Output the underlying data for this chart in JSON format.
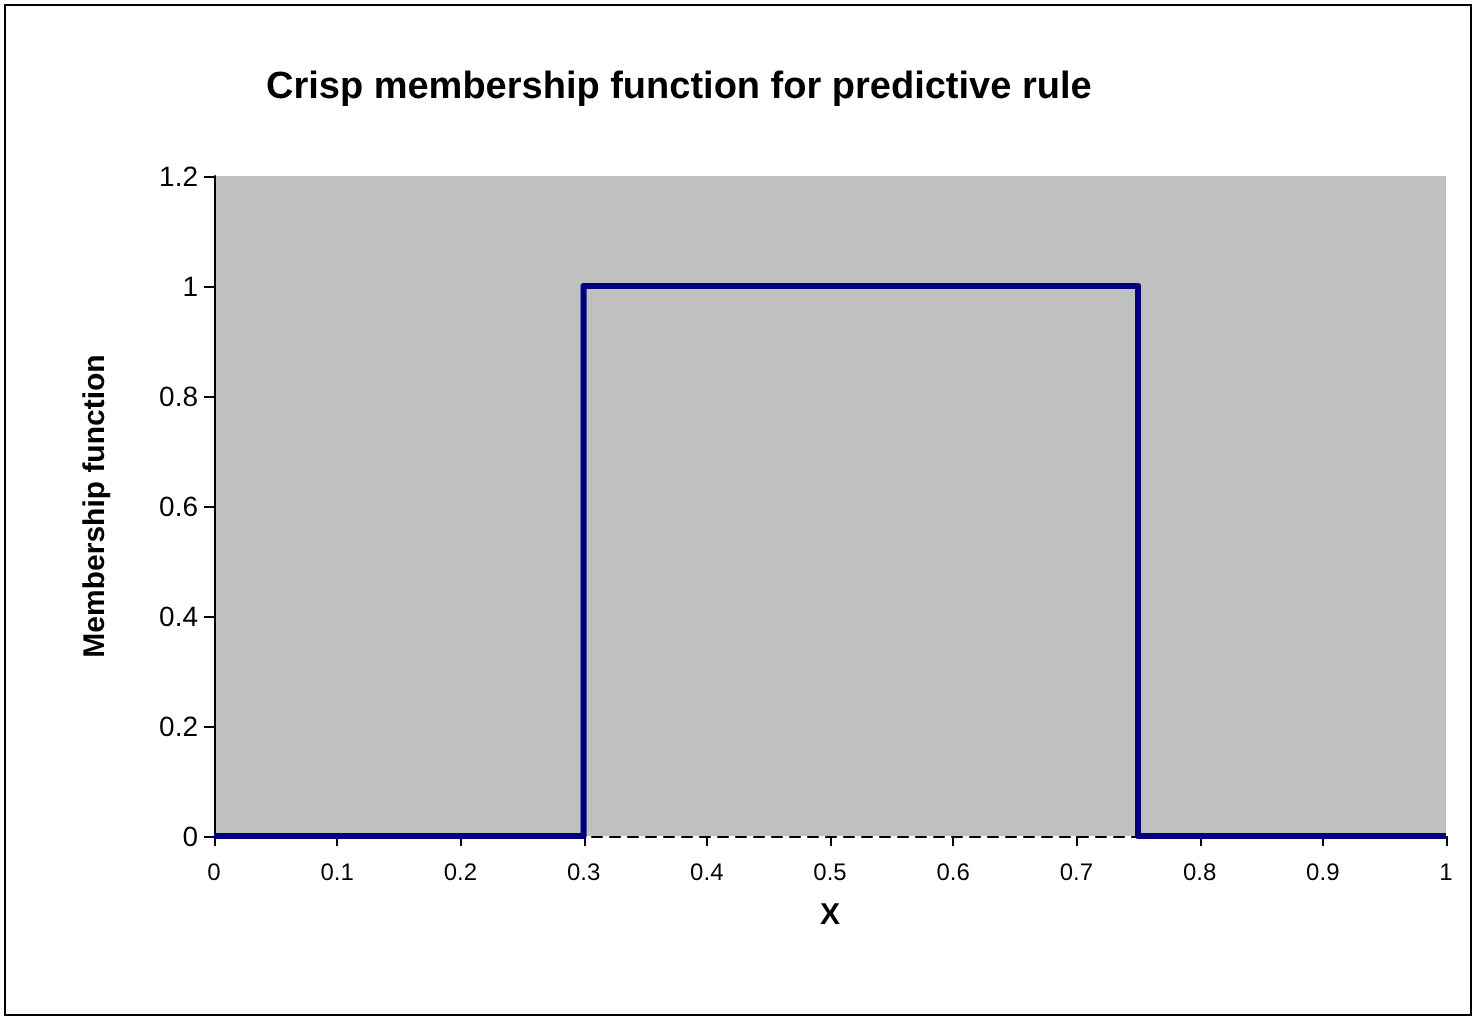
{
  "chart_data": {
    "type": "line",
    "title": "Crisp membership function for predictive rule",
    "xlabel": "X",
    "ylabel": "Membership function",
    "x": [
      0,
      0.3,
      0.3,
      0.75,
      0.75,
      1
    ],
    "series": [
      {
        "color": "#000080",
        "values": [
          0,
          0,
          1,
          1,
          0,
          0
        ]
      }
    ],
    "xlim": [
      0,
      1
    ],
    "xticks": [
      0,
      0.1,
      0.2,
      0.3,
      0.4,
      0.5,
      0.6,
      0.7,
      0.8,
      0.9,
      1
    ],
    "ylim": [
      0,
      1.2
    ],
    "yticks": [
      0,
      0.2,
      0.4,
      0.6,
      0.8,
      1,
      1.2
    ],
    "grid": false,
    "marker": "none",
    "line_style": "solid"
  }
}
